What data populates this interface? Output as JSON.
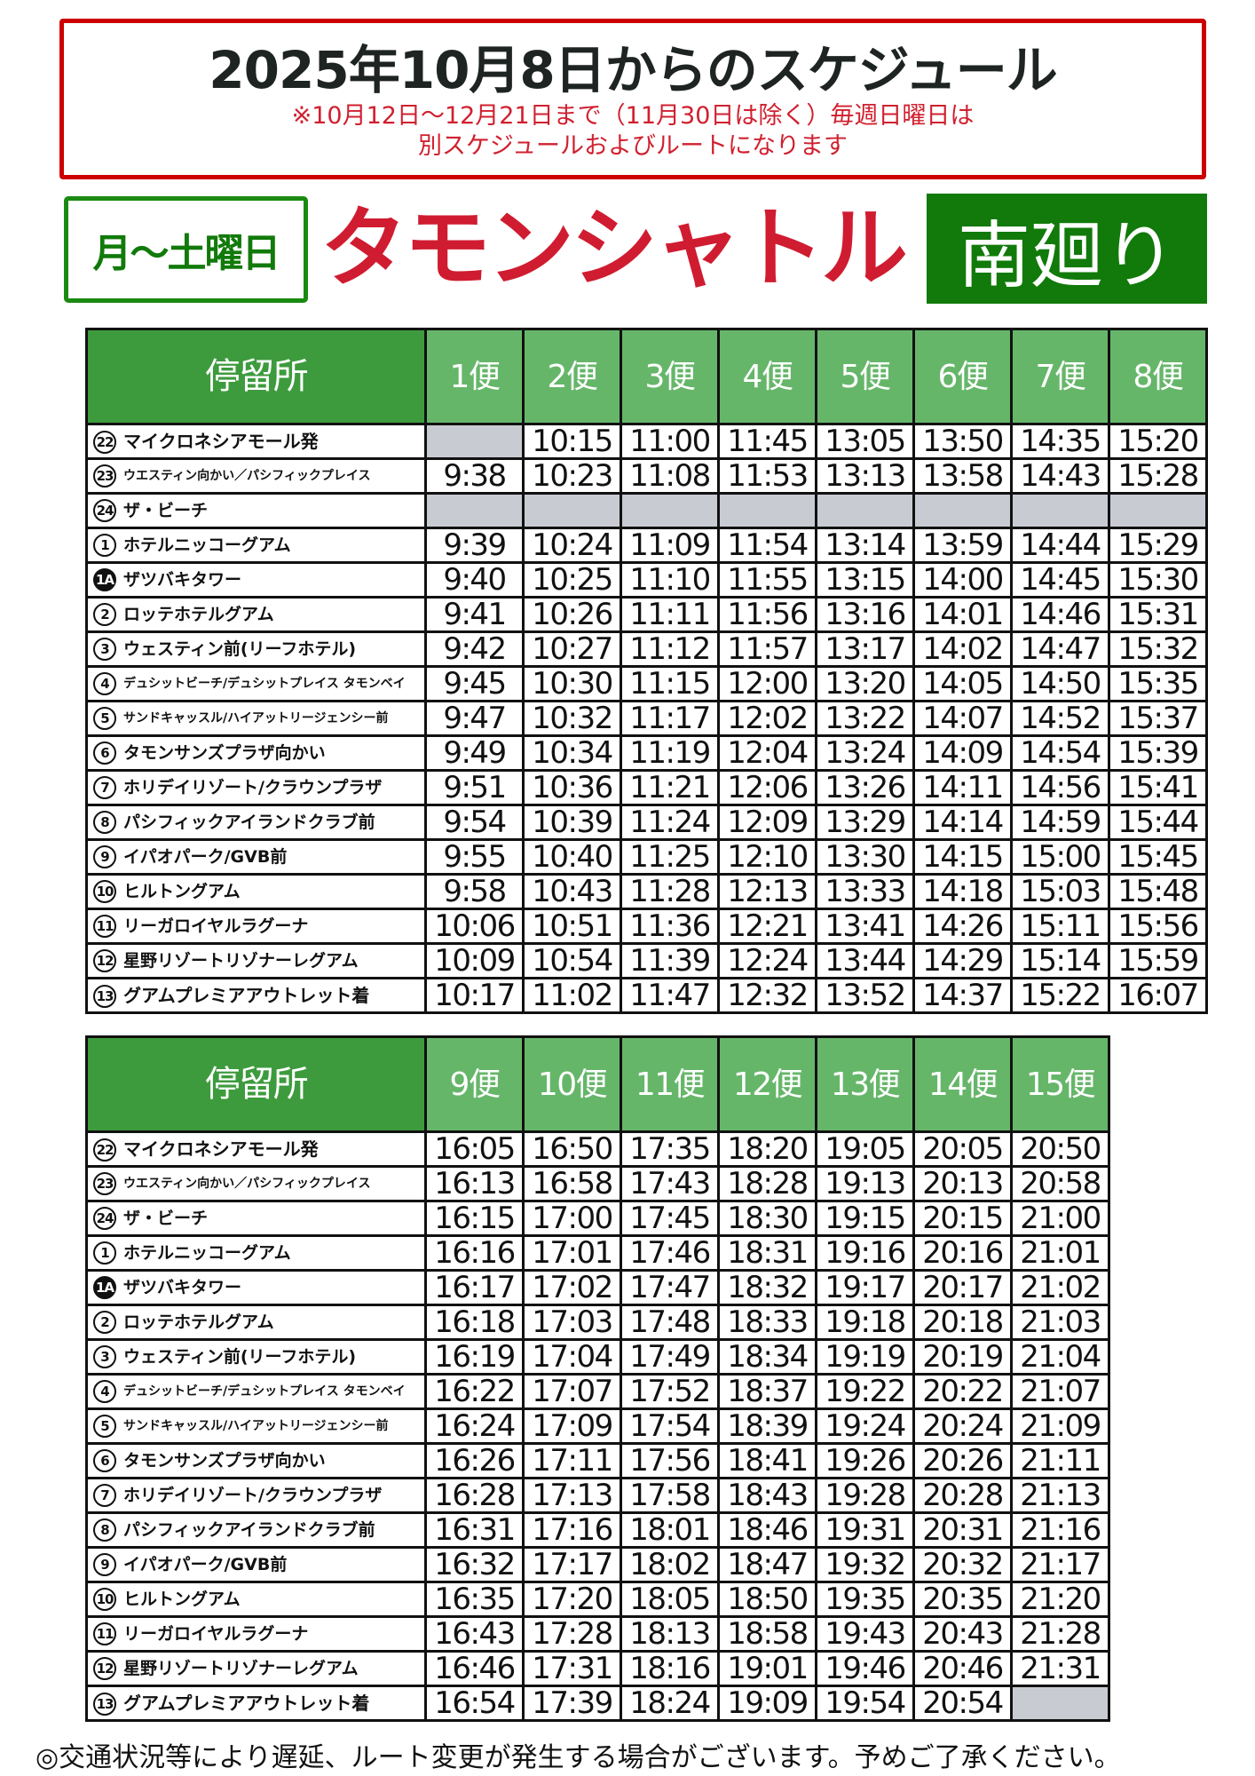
{
  "header": {
    "title": "2025年10月8日からのスケジュール",
    "note_line1": "※10月12日〜12月21日まで（11月30日は除く）毎週日曜日は",
    "note_line2": "別スケジュールおよびルートになります"
  },
  "days": "月〜土曜日",
  "service_name": "タモンシャトル",
  "route": "南廻り",
  "colors": {
    "border_red": "#cc0000",
    "title_red": "#d01c30",
    "green_dark": "#117a0a",
    "header_green": "#66b66a",
    "stop_header_green": "#3d9b3d",
    "no_service_grey": "#c8cbd2"
  },
  "stop_header": "停留所",
  "stops": [
    {
      "no": "22",
      "name": "マイクロネシアモール発",
      "style": "bold"
    },
    {
      "no": "23",
      "name": "ウエスティン向かい／パシフィックプレイス",
      "style": "small"
    },
    {
      "no": "24",
      "name": "ザ・ビーチ"
    },
    {
      "no": "1",
      "name": "ホテルニッコーグアム"
    },
    {
      "no": "1A",
      "name": "ザツバキタワー",
      "inverted": true
    },
    {
      "no": "2",
      "name": "ロッテホテルグアム"
    },
    {
      "no": "3",
      "name": "ウェスティン前(リーフホテル)"
    },
    {
      "no": "4",
      "name": "デュシットビーチ/デュシットプレイス タモンベイ",
      "style": "small"
    },
    {
      "no": "5",
      "name": "サンドキャッスル/ハイアットリージェンシー前",
      "style": "small"
    },
    {
      "no": "6",
      "name": "タモンサンズプラザ向かい"
    },
    {
      "no": "7",
      "name": "ホリデイリゾート/クラウンプラザ"
    },
    {
      "no": "8",
      "name": "パシフィックアイランドクラブ前"
    },
    {
      "no": "9",
      "name": "イパオパーク/GVB前"
    },
    {
      "no": "10",
      "name": "ヒルトングアム"
    },
    {
      "no": "11",
      "name": "リーガロイヤルラグーナ"
    },
    {
      "no": "12",
      "name": "星野リゾートリゾナーレグアム"
    },
    {
      "no": "13",
      "name": "グアムプレミアアウトレット着",
      "style": "bold"
    }
  ],
  "tables": [
    {
      "trips": [
        "1便",
        "2便",
        "3便",
        "4便",
        "5便",
        "6便",
        "7便",
        "8便"
      ],
      "rows": [
        [
          null,
          "10:15",
          "11:00",
          "11:45",
          "13:05",
          "13:50",
          "14:35",
          "15:20"
        ],
        [
          "9:38",
          "10:23",
          "11:08",
          "11:53",
          "13:13",
          "13:58",
          "14:43",
          "15:28"
        ],
        [
          null,
          null,
          null,
          null,
          null,
          null,
          null,
          null
        ],
        [
          "9:39",
          "10:24",
          "11:09",
          "11:54",
          "13:14",
          "13:59",
          "14:44",
          "15:29"
        ],
        [
          "9:40",
          "10:25",
          "11:10",
          "11:55",
          "13:15",
          "14:00",
          "14:45",
          "15:30"
        ],
        [
          "9:41",
          "10:26",
          "11:11",
          "11:56",
          "13:16",
          "14:01",
          "14:46",
          "15:31"
        ],
        [
          "9:42",
          "10:27",
          "11:12",
          "11:57",
          "13:17",
          "14:02",
          "14:47",
          "15:32"
        ],
        [
          "9:45",
          "10:30",
          "11:15",
          "12:00",
          "13:20",
          "14:05",
          "14:50",
          "15:35"
        ],
        [
          "9:47",
          "10:32",
          "11:17",
          "12:02",
          "13:22",
          "14:07",
          "14:52",
          "15:37"
        ],
        [
          "9:49",
          "10:34",
          "11:19",
          "12:04",
          "13:24",
          "14:09",
          "14:54",
          "15:39"
        ],
        [
          "9:51",
          "10:36",
          "11:21",
          "12:06",
          "13:26",
          "14:11",
          "14:56",
          "15:41"
        ],
        [
          "9:54",
          "10:39",
          "11:24",
          "12:09",
          "13:29",
          "14:14",
          "14:59",
          "15:44"
        ],
        [
          "9:55",
          "10:40",
          "11:25",
          "12:10",
          "13:30",
          "14:15",
          "15:00",
          "15:45"
        ],
        [
          "9:58",
          "10:43",
          "11:28",
          "12:13",
          "13:33",
          "14:18",
          "15:03",
          "15:48"
        ],
        [
          "10:06",
          "10:51",
          "11:36",
          "12:21",
          "13:41",
          "14:26",
          "15:11",
          "15:56"
        ],
        [
          "10:09",
          "10:54",
          "11:39",
          "12:24",
          "13:44",
          "14:29",
          "15:14",
          "15:59"
        ],
        [
          "10:17",
          "11:02",
          "11:47",
          "12:32",
          "13:52",
          "14:37",
          "15:22",
          "16:07"
        ]
      ]
    },
    {
      "trips": [
        "9便",
        "10便",
        "11便",
        "12便",
        "13便",
        "14便",
        "15便"
      ],
      "rows": [
        [
          "16:05",
          "16:50",
          "17:35",
          "18:20",
          "19:05",
          "20:05",
          "20:50"
        ],
        [
          "16:13",
          "16:58",
          "17:43",
          "18:28",
          "19:13",
          "20:13",
          "20:58"
        ],
        [
          "16:15",
          "17:00",
          "17:45",
          "18:30",
          "19:15",
          "20:15",
          "21:00"
        ],
        [
          "16:16",
          "17:01",
          "17:46",
          "18:31",
          "19:16",
          "20:16",
          "21:01"
        ],
        [
          "16:17",
          "17:02",
          "17:47",
          "18:32",
          "19:17",
          "20:17",
          "21:02"
        ],
        [
          "16:18",
          "17:03",
          "17:48",
          "18:33",
          "19:18",
          "20:18",
          "21:03"
        ],
        [
          "16:19",
          "17:04",
          "17:49",
          "18:34",
          "19:19",
          "20:19",
          "21:04"
        ],
        [
          "16:22",
          "17:07",
          "17:52",
          "18:37",
          "19:22",
          "20:22",
          "21:07"
        ],
        [
          "16:24",
          "17:09",
          "17:54",
          "18:39",
          "19:24",
          "20:24",
          "21:09"
        ],
        [
          "16:26",
          "17:11",
          "17:56",
          "18:41",
          "19:26",
          "20:26",
          "21:11"
        ],
        [
          "16:28",
          "17:13",
          "17:58",
          "18:43",
          "19:28",
          "20:28",
          "21:13"
        ],
        [
          "16:31",
          "17:16",
          "18:01",
          "18:46",
          "19:31",
          "20:31",
          "21:16"
        ],
        [
          "16:32",
          "17:17",
          "18:02",
          "18:47",
          "19:32",
          "20:32",
          "21:17"
        ],
        [
          "16:35",
          "17:20",
          "18:05",
          "18:50",
          "19:35",
          "20:35",
          "21:20"
        ],
        [
          "16:43",
          "17:28",
          "18:13",
          "18:58",
          "19:43",
          "20:43",
          "21:28"
        ],
        [
          "16:46",
          "17:31",
          "18:16",
          "19:01",
          "19:46",
          "20:46",
          "21:31"
        ],
        [
          "16:54",
          "17:39",
          "18:24",
          "19:09",
          "19:54",
          "20:54",
          null
        ]
      ]
    }
  ],
  "footer": "◎交通状況等により遅延、ルート変更が発生する場合がございます。予めご了承ください。"
}
